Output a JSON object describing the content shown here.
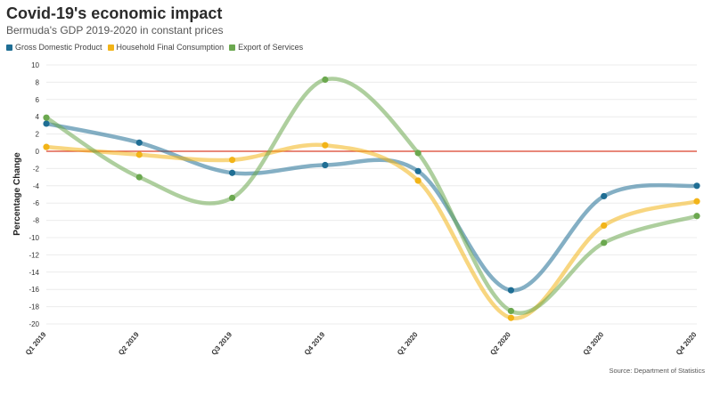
{
  "chart_data": {
    "type": "line",
    "title": "Covid-19's economic impact",
    "subtitle": "Bermuda's GDP 2019-2020 in constant prices",
    "ylabel": "Percentage Change",
    "xlabel": "",
    "categories": [
      "Q1 2019",
      "Q2 2019",
      "Q3 2019",
      "Q4 2019",
      "Q1 2020",
      "Q2 2020",
      "Q3 2020",
      "Q4 2020"
    ],
    "ylim": [
      -20,
      10
    ],
    "yticks": [
      10,
      8,
      6,
      4,
      2,
      0,
      -2,
      -4,
      -6,
      -8,
      -10,
      -12,
      -14,
      -16,
      -18,
      -20
    ],
    "reference_line": 0,
    "series": [
      {
        "name": "Gross Domestic Product",
        "color": "#1f6e94",
        "values": [
          3.2,
          1.0,
          -2.5,
          -1.6,
          -2.3,
          -16.1,
          -5.2,
          -4.0
        ]
      },
      {
        "name": "Household Final Consumption",
        "color": "#f2b418",
        "values": [
          0.5,
          -0.4,
          -1.0,
          0.7,
          -3.4,
          -19.3,
          -8.6,
          -5.8
        ]
      },
      {
        "name": "Export of Services",
        "color": "#6ba84f",
        "values": [
          3.9,
          -3.0,
          -5.4,
          8.3,
          -0.2,
          -18.5,
          -10.6,
          -7.5
        ]
      }
    ],
    "legend": "top-left",
    "grid": true,
    "reference_line_color": "#d9412a"
  },
  "source": "Source: Department of Statistics"
}
